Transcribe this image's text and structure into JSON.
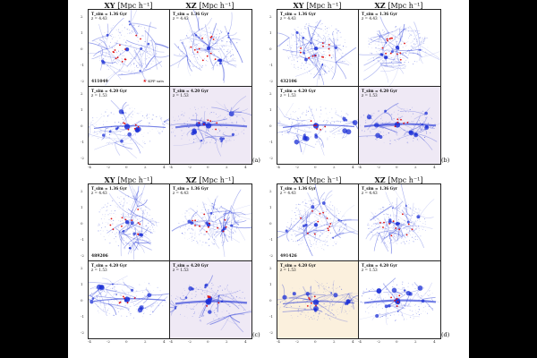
{
  "headers": {
    "xy_label": "XY",
    "xz_label": "XZ",
    "unit": "[Mpc h⁻¹]"
  },
  "upper_stamp": {
    "time": "T_sim = 1.36 Gyr",
    "redshift": "z = 4.43"
  },
  "lower_stamp": {
    "time": "T_sim = 4.20 Gyr",
    "redshift": "z = 1.53"
  },
  "legend_label": "KPP sats",
  "panels": [
    {
      "label": "(a)",
      "halo_id": "411049"
    },
    {
      "label": "(b)",
      "halo_id": "432106"
    },
    {
      "label": "(c)",
      "halo_id": "489206"
    },
    {
      "label": "(d)",
      "halo_id": "491426"
    }
  ],
  "y_ticks": [
    "2",
    "1",
    "0",
    "-1",
    "-2"
  ],
  "x_ticks": [
    "-4",
    "-2",
    "0",
    "2",
    "4"
  ],
  "colors": {
    "filament": "#1b2fd6",
    "satellite": "#e01010",
    "shade_purple": "#efe9f5",
    "shade_orange": "#fbf0dd"
  }
}
